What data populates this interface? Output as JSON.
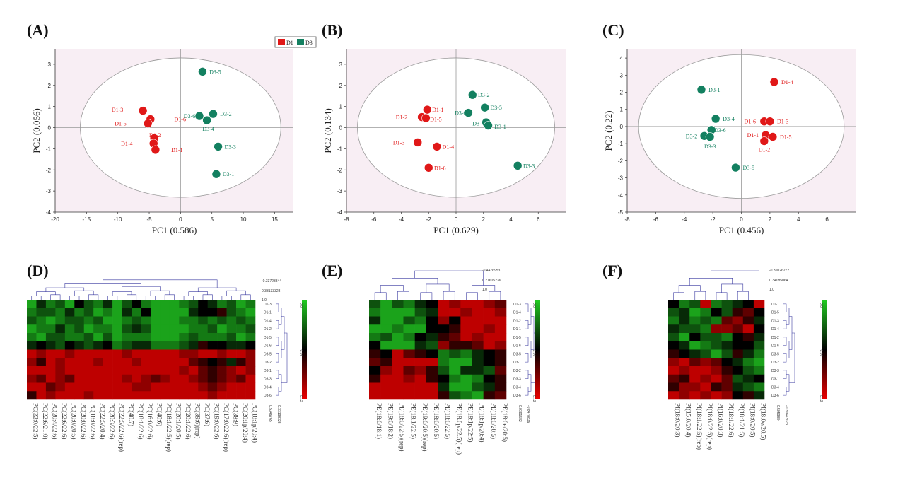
{
  "panel_labels": [
    "(A)",
    "(B)",
    "(C)",
    "(D)",
    "(E)",
    "(F)"
  ],
  "legend": {
    "items": [
      {
        "label": "D1",
        "color": "#e01818"
      },
      {
        "label": "D3",
        "color": "#138060"
      }
    ]
  },
  "colors": {
    "d1": "#e01818",
    "d3": "#138060",
    "plot_bg": "#f8eef4",
    "ellipse": "#9a9a9a",
    "heat_green": "#22cc22",
    "heat_black": "#000000",
    "heat_red": "#ee0000",
    "dendro": "#3a3aa0"
  },
  "chart_data": [
    {
      "type": "scatter",
      "panel": "(A)",
      "xlabel": "PC1 (0.586)",
      "ylabel": "PC2 (0.056)",
      "xlim": [
        -20,
        18
      ],
      "ylim": [
        -4,
        3.7
      ],
      "xticks": [
        -20,
        -15,
        -10,
        -5,
        0,
        5,
        10,
        15
      ],
      "yticks": [
        -4,
        -3,
        -2,
        -1,
        0,
        1,
        2,
        3
      ],
      "ellipse": {
        "cx": 0,
        "cy": 0,
        "rx": 16,
        "ry": 3.3
      },
      "points": [
        {
          "label": "D1-3",
          "x": -6,
          "y": 0.8,
          "g": "D1",
          "lx": -11,
          "ly": 0.85
        },
        {
          "label": "D1-6",
          "x": -4.8,
          "y": 0.4,
          "g": "D1",
          "lx": -1,
          "ly": 0.4
        },
        {
          "label": "D1-5",
          "x": -5.2,
          "y": 0.2,
          "g": "D1",
          "lx": -10.5,
          "ly": 0.2
        },
        {
          "label": "D1-2",
          "x": -4.2,
          "y": -0.5,
          "g": "D1",
          "lx": -5,
          "ly": -0.35
        },
        {
          "label": "D1-4",
          "x": -4.3,
          "y": -0.75,
          "g": "D1",
          "lx": -9.5,
          "ly": -0.75
        },
        {
          "label": "D1-1",
          "x": -4,
          "y": -1.05,
          "g": "D1",
          "lx": -1.5,
          "ly": -1.05
        },
        {
          "label": "D3-5",
          "x": 3.5,
          "y": 2.65,
          "g": "D3",
          "lx": 4.6,
          "ly": 2.65
        },
        {
          "label": "D3-6",
          "x": 3,
          "y": 0.55,
          "g": "D3",
          "lx": 0.5,
          "ly": 0.55
        },
        {
          "label": "D3-2",
          "x": 5.2,
          "y": 0.65,
          "g": "D3",
          "lx": 6.3,
          "ly": 0.65
        },
        {
          "label": "D3-4",
          "x": 4.2,
          "y": 0.35,
          "g": "D3",
          "lx": 3.5,
          "ly": -0.05
        },
        {
          "label": "D3-3",
          "x": 6,
          "y": -0.9,
          "g": "D3",
          "lx": 7,
          "ly": -0.9
        },
        {
          "label": "D3-1",
          "x": 5.7,
          "y": -2.2,
          "g": "D3",
          "lx": 6.7,
          "ly": -2.2
        }
      ]
    },
    {
      "type": "scatter",
      "panel": "(B)",
      "xlabel": "PC1 (0.629)",
      "ylabel": "PC2 (0.134)",
      "xlim": [
        -8,
        8
      ],
      "ylim": [
        -4,
        3.7
      ],
      "xticks": [
        -8,
        -6,
        -4,
        -2,
        0,
        2,
        4,
        6
      ],
      "yticks": [
        -4,
        -3,
        -2,
        -1,
        0,
        1,
        2,
        3
      ],
      "ellipse": {
        "cx": 0,
        "cy": 0,
        "rx": 7.2,
        "ry": 3.3
      },
      "points": [
        {
          "label": "D1-1",
          "x": -2.1,
          "y": 0.85,
          "g": "D1",
          "lx": -1.75,
          "ly": 0.85
        },
        {
          "label": "D1-2",
          "x": -2.5,
          "y": 0.5,
          "g": "D1",
          "lx": -4.4,
          "ly": 0.5
        },
        {
          "label": "D1-5",
          "x": -2.2,
          "y": 0.45,
          "g": "D1",
          "lx": -1.9,
          "ly": 0.4
        },
        {
          "label": "D1-3",
          "x": -2.8,
          "y": -0.7,
          "g": "D1",
          "lx": -4.6,
          "ly": -0.7
        },
        {
          "label": "D1-4",
          "x": -1.4,
          "y": -0.9,
          "g": "D1",
          "lx": -1.0,
          "ly": -0.9
        },
        {
          "label": "D1-6",
          "x": -2.0,
          "y": -1.9,
          "g": "D1",
          "lx": -1.6,
          "ly": -1.9
        },
        {
          "label": "D3-2",
          "x": 1.2,
          "y": 1.55,
          "g": "D3",
          "lx": 1.6,
          "ly": 1.55
        },
        {
          "label": "D3-5",
          "x": 2.1,
          "y": 0.95,
          "g": "D3",
          "lx": 2.5,
          "ly": 0.95
        },
        {
          "label": "D3-6",
          "x": 0.9,
          "y": 0.7,
          "g": "D3",
          "lx": -0.1,
          "ly": 0.7
        },
        {
          "label": "D3-4",
          "x": 2.2,
          "y": 0.25,
          "g": "D3",
          "lx": 1.2,
          "ly": 0.2
        },
        {
          "label": "D3-1",
          "x": 2.35,
          "y": 0.1,
          "g": "D3",
          "lx": 2.8,
          "ly": 0.05
        },
        {
          "label": "D3-3",
          "x": 4.5,
          "y": -1.8,
          "g": "D3",
          "lx": 4.9,
          "ly": -1.8
        }
      ]
    },
    {
      "type": "scatter",
      "panel": "(C)",
      "xlabel": "PC1 (0.456)",
      "ylabel": "PC2 (0.22)",
      "xlim": [
        -8,
        8
      ],
      "ylim": [
        -5,
        4.5
      ],
      "xticks": [
        -8,
        -6,
        -4,
        -2,
        0,
        2,
        4,
        6
      ],
      "yticks": [
        -5,
        -4,
        -3,
        -2,
        -1,
        0,
        1,
        2,
        3,
        4
      ],
      "ellipse": {
        "cx": 0,
        "cy": 0,
        "rx": 7.2,
        "ry": 4.2
      },
      "points": [
        {
          "label": "D1-4",
          "x": 2.3,
          "y": 2.6,
          "g": "D1",
          "lx": 2.8,
          "ly": 2.6
        },
        {
          "label": "D1-6",
          "x": 1.6,
          "y": 0.3,
          "g": "D1",
          "lx": 0.2,
          "ly": 0.3
        },
        {
          "label": "D1-3",
          "x": 2.0,
          "y": 0.3,
          "g": "D1",
          "lx": 2.5,
          "ly": 0.3
        },
        {
          "label": "D1-1",
          "x": 1.7,
          "y": -0.5,
          "g": "D1",
          "lx": 0.4,
          "ly": -0.5
        },
        {
          "label": "D1-5",
          "x": 2.2,
          "y": -0.6,
          "g": "D1",
          "lx": 2.7,
          "ly": -0.6
        },
        {
          "label": "D1-2",
          "x": 1.6,
          "y": -0.85,
          "g": "D1",
          "lx": 1.2,
          "ly": -1.35
        },
        {
          "label": "D3-1",
          "x": -2.8,
          "y": 2.15,
          "g": "D3",
          "lx": -2.3,
          "ly": 2.15
        },
        {
          "label": "D3-4",
          "x": -1.8,
          "y": 0.45,
          "g": "D3",
          "lx": -1.3,
          "ly": 0.45
        },
        {
          "label": "D3-6",
          "x": -2.1,
          "y": -0.2,
          "g": "D3",
          "lx": -1.9,
          "ly": -0.2
        },
        {
          "label": "D3-2",
          "x": -2.6,
          "y": -0.55,
          "g": "D3",
          "lx": -3.9,
          "ly": -0.55
        },
        {
          "label": "D3-3",
          "x": -2.2,
          "y": -0.6,
          "g": "D3",
          "lx": -2.6,
          "ly": -1.15
        },
        {
          "label": "D3-5",
          "x": -0.4,
          "y": -2.4,
          "g": "D3",
          "lx": 0.1,
          "ly": -2.4
        }
      ]
    },
    {
      "type": "heatmap",
      "panel": "(D)",
      "scale": [
        "0.0",
        "0.06",
        "0.12"
      ],
      "tree_labels": [
        "-0.33723344",
        "0.33133328",
        "1.0"
      ],
      "row_labels": [
        "D1-3",
        "D1-1",
        "D1-4",
        "D1-2",
        "D1-5",
        "D1-6",
        "D3-5",
        "D3-2",
        "D3-1",
        "D3-3",
        "D3-4",
        "D3-6"
      ],
      "col_labels": [
        "PC(22:0/22:5)",
        "PC(22:6/21:0)",
        "PC(20:4/22:6)",
        "PC(22:6/22:6)",
        "PC(20:0/20:5)",
        "PC(20:0/22:6)",
        "PC(18:0/22:6)",
        "PC(22:5/20:4)",
        "PC(20:3/22:6)",
        "PC(22:5/22:6)(rep)",
        "PC(40:7)",
        "PC(18:1/22:6)",
        "PC(16:0/22:6)",
        "PC(40:6)",
        "PC(18:1/22:5)(rep)",
        "PC(20:1/20:5)",
        "PC(20:1/22:6)",
        "PC(39:6)(rep)",
        "PC(37:6)",
        "PC(19:0/22:6)",
        "PC(17:0/22:6)(rep)",
        "PC(38:9)",
        "PC(20:1p/20:4)",
        "PC(18:1p/20:4)"
      ],
      "bottom_labels": [
        "0.5346765",
        "0.33138328"
      ],
      "top_pattern": "green",
      "values": [
        [
          0.1,
          0.4,
          0.2,
          0.3,
          0.1,
          0.5,
          0.3,
          0.2,
          0.4,
          0.1,
          0.3,
          0.5,
          0.2,
          0.1,
          0.1,
          0.1,
          0.2,
          0.3,
          0.5,
          0.4,
          0.2,
          0.3,
          0.1,
          0.2
        ],
        [
          0.2,
          0.3,
          0.3,
          0.2,
          0.4,
          0.2,
          0.3,
          0.1,
          0.2,
          0.1,
          0.4,
          0.2,
          0.5,
          0.1,
          0.1,
          0.1,
          0.1,
          0.4,
          0.5,
          0.5,
          0.6,
          0.3,
          0.2,
          0.1
        ],
        [
          0.3,
          0.2,
          0.1,
          0.2,
          0.3,
          0.3,
          0.2,
          0.3,
          0.1,
          0.1,
          0.2,
          0.3,
          0.2,
          0.1,
          0.1,
          0.1,
          0.2,
          0.2,
          0.3,
          0.2,
          0.3,
          0.2,
          0.3,
          0.2
        ],
        [
          0.1,
          0.2,
          0.2,
          0.4,
          0.2,
          0.3,
          0.1,
          0.2,
          0.2,
          0.1,
          0.3,
          0.4,
          0.3,
          0.1,
          0.1,
          0.1,
          0.1,
          0.2,
          0.2,
          0.3,
          0.1,
          0.2,
          0.2,
          0.3
        ],
        [
          0.2,
          0.1,
          0.3,
          0.3,
          0.2,
          0.2,
          0.3,
          0.1,
          0.3,
          0.1,
          0.2,
          0.2,
          0.2,
          0.1,
          0.1,
          0.1,
          0.2,
          0.3,
          0.2,
          0.2,
          0.2,
          0.3,
          0.1,
          0.2
        ],
        [
          0.4,
          0.5,
          0.4,
          0.3,
          0.5,
          0.4,
          0.3,
          0.4,
          0.5,
          0.2,
          0.3,
          0.4,
          0.4,
          0.2,
          0.2,
          0.2,
          0.3,
          0.4,
          0.6,
          0.5,
          0.5,
          0.4,
          0.4,
          0.5
        ],
        [
          0.9,
          0.8,
          0.9,
          0.9,
          0.8,
          0.9,
          0.9,
          0.9,
          0.9,
          0.9,
          0.8,
          0.9,
          0.9,
          0.9,
          0.9,
          0.9,
          0.8,
          0.8,
          0.9,
          0.9,
          0.8,
          0.9,
          0.9,
          0.8
        ],
        [
          0.8,
          0.6,
          0.9,
          0.8,
          0.9,
          0.9,
          0.9,
          0.8,
          0.9,
          0.9,
          0.9,
          0.8,
          0.9,
          0.9,
          0.9,
          0.9,
          0.9,
          0.7,
          0.6,
          0.5,
          0.6,
          0.4,
          0.6,
          0.8
        ],
        [
          0.9,
          0.9,
          0.9,
          0.8,
          0.9,
          0.9,
          0.9,
          0.9,
          0.9,
          0.9,
          0.9,
          0.9,
          0.9,
          0.9,
          0.9,
          0.9,
          0.8,
          0.9,
          0.7,
          0.6,
          0.7,
          0.8,
          0.9,
          0.8
        ],
        [
          0.8,
          0.7,
          0.9,
          0.8,
          0.7,
          0.9,
          0.9,
          0.9,
          0.9,
          0.9,
          0.8,
          0.9,
          0.8,
          0.7,
          0.8,
          0.9,
          0.9,
          0.8,
          0.7,
          0.6,
          0.7,
          0.8,
          0.7,
          0.9
        ],
        [
          0.9,
          0.9,
          0.7,
          0.8,
          0.9,
          0.9,
          0.9,
          0.9,
          0.9,
          0.9,
          0.9,
          0.8,
          0.8,
          0.9,
          0.9,
          0.9,
          0.9,
          0.9,
          0.8,
          0.7,
          0.8,
          0.9,
          0.9,
          0.9
        ],
        [
          0.6,
          0.9,
          0.8,
          0.9,
          0.9,
          0.9,
          0.8,
          0.9,
          0.9,
          0.9,
          0.9,
          0.9,
          0.9,
          0.9,
          0.9,
          0.9,
          0.9,
          0.9,
          0.9,
          0.8,
          0.9,
          0.9,
          0.9,
          0.9
        ]
      ]
    },
    {
      "type": "heatmap",
      "panel": "(E)",
      "scale": [
        "0.0",
        "0.06",
        "0.12"
      ],
      "tree_labels": [
        "-0.4476953",
        "0.27605236",
        "1.0"
      ],
      "row_labels": [
        "D1-3",
        "D1-4",
        "D1-2",
        "D1-1",
        "D1-5",
        "D1-6",
        "D3-5",
        "D3-1",
        "D3-2",
        "D3-3",
        "D3-4",
        "D3-6"
      ],
      "col_labels": [
        "PE(18:0/18:1)",
        "PE(19:0/18:2)",
        "PE(18:0/22:5)(rep)",
        "PE(18:1/22:5)",
        "PE(19:0/20:5)(rep)",
        "PE(18:0/20:5)",
        "PE(18:0/22:5)",
        "PE(18:0p/22:5)(rep)",
        "PE(18:1p/22:5)",
        "PE(18:1p/20:4)",
        "PE(18:0/20:5)",
        "PE(18:0e/20:5)"
      ],
      "bottom_labels": [
        "0.9391582",
        "-0.8478836"
      ],
      "values": [
        [
          0.3,
          0.1,
          0.3,
          0.2,
          0.4,
          0.5,
          0.9,
          0.8,
          0.9,
          0.9,
          0.8,
          0.7
        ],
        [
          0.2,
          0.1,
          0.1,
          0.1,
          0.3,
          0.4,
          0.9,
          0.9,
          0.8,
          0.9,
          0.9,
          0.8
        ],
        [
          0.4,
          0.1,
          0.1,
          0.3,
          0.2,
          0.5,
          0.8,
          0.5,
          0.9,
          0.9,
          0.9,
          0.9
        ],
        [
          0.1,
          0.1,
          0.2,
          0.1,
          0.1,
          0.5,
          0.5,
          0.6,
          0.9,
          0.9,
          0.8,
          0.9
        ],
        [
          0.2,
          0.3,
          0.1,
          0.2,
          0.5,
          0.4,
          0.6,
          0.7,
          0.9,
          0.8,
          0.9,
          0.9
        ],
        [
          0.5,
          0.1,
          0.1,
          0.1,
          0.4,
          0.3,
          0.8,
          0.6,
          0.6,
          0.7,
          0.9,
          0.8
        ],
        [
          0.6,
          0.5,
          0.9,
          0.7,
          0.6,
          0.5,
          0.2,
          0.3,
          0.2,
          0.4,
          0.5,
          0.6
        ],
        [
          0.7,
          0.6,
          0.9,
          0.9,
          0.9,
          0.9,
          0.2,
          0.1,
          0.1,
          0.4,
          0.5,
          0.6
        ],
        [
          0.5,
          0.8,
          0.9,
          0.7,
          0.8,
          0.6,
          0.3,
          0.1,
          0.4,
          0.4,
          0.3,
          0.7
        ],
        [
          0.6,
          0.9,
          0.9,
          0.8,
          0.9,
          0.6,
          0.5,
          0.2,
          0.1,
          0.2,
          0.5,
          0.6
        ],
        [
          0.9,
          0.9,
          0.9,
          0.9,
          0.9,
          0.9,
          0.4,
          0.1,
          0.1,
          0.3,
          0.4,
          0.6
        ],
        [
          0.9,
          0.9,
          0.9,
          0.9,
          0.9,
          0.9,
          0.6,
          0.3,
          0.2,
          0.1,
          0.6,
          0.7
        ]
      ]
    },
    {
      "type": "heatmap",
      "panel": "(F)",
      "scale": [
        "0.0",
        "0.06",
        "0.12"
      ],
      "tree_labels": [
        "-0.31026272",
        "0.34085064",
        "1.0"
      ],
      "row_labels": [
        "D1-1",
        "D1-5",
        "D1-3",
        "D1-4",
        "D1-2",
        "D1-6",
        "D3-5",
        "D3-2",
        "D3-3",
        "D3-1",
        "D3-4",
        "D3-6"
      ],
      "col_labels": [
        "PI(18:0/20:3)",
        "PI(15:0/20:4)",
        "PI(18:1/22:5)(rep)",
        "PI(18:0/22:5)(rep)",
        "PI(16:0/20:3)",
        "PI(18:1/22:6)",
        "PI(18:1/21:5)",
        "PI(18:0/20:5)",
        "PI(18:0e/20:5)"
      ],
      "bottom_labels": [
        "0.5953884",
        "-0.30643073"
      ],
      "values": [
        [
          0.5,
          0.2,
          0.3,
          0.9,
          0.2,
          0.3,
          0.4,
          0.5,
          0.9
        ],
        [
          0.3,
          0.4,
          0.1,
          0.2,
          0.5,
          0.3,
          0.6,
          0.7,
          0.5
        ],
        [
          0.2,
          0.4,
          0.2,
          0.3,
          0.2,
          0.7,
          0.8,
          0.6,
          0.4
        ],
        [
          0.4,
          0.3,
          0.3,
          0.2,
          0.8,
          0.8,
          0.7,
          0.9,
          0.5
        ],
        [
          0.3,
          0.1,
          0.5,
          0.3,
          0.3,
          0.2,
          0.5,
          0.6,
          0.4
        ],
        [
          0.5,
          0.4,
          0.1,
          0.2,
          0.3,
          0.4,
          0.5,
          0.5,
          0.3
        ],
        [
          0.6,
          0.5,
          0.4,
          0.3,
          0.1,
          0.3,
          0.6,
          0.4,
          0.2
        ],
        [
          0.8,
          0.9,
          0.7,
          0.8,
          0.7,
          0.5,
          0.4,
          0.2,
          0.1
        ],
        [
          0.9,
          0.8,
          0.9,
          0.9,
          0.8,
          0.6,
          0.5,
          0.3,
          0.2
        ],
        [
          0.7,
          0.6,
          0.9,
          0.8,
          0.9,
          0.7,
          0.3,
          0.4,
          0.5
        ],
        [
          0.6,
          0.8,
          0.8,
          0.9,
          0.6,
          0.7,
          0.4,
          0.3,
          0.2
        ],
        [
          0.9,
          0.8,
          0.9,
          0.8,
          0.9,
          0.8,
          0.5,
          0.6,
          0.4
        ]
      ]
    }
  ]
}
